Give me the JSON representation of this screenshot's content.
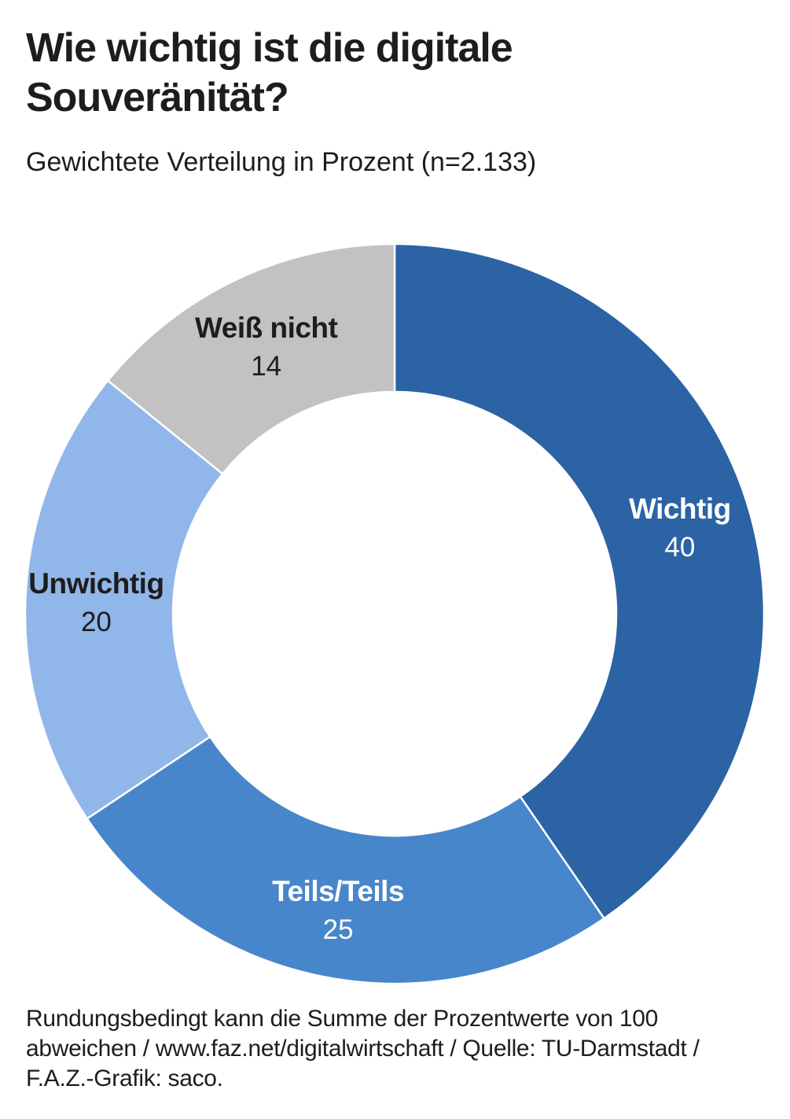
{
  "title": "Wie wichtig ist die digitale Souveränität?",
  "subtitle": "Gewichtete Verteilung in Prozent (n=2.133)",
  "footnote": "Rundungsbedingt kann die Summe der Prozentwerte von 100 abweichen / www.faz.net/digitalwirtschaft / Quelle: TU-Darmstadt / F.A.Z.-Grafik: saco.",
  "colors": {
    "text": "#1d1d1b",
    "background": "#ffffff",
    "divider": "#ffffff"
  },
  "chart_data": {
    "type": "pie",
    "subtype": "donut",
    "title": "Wie wichtig ist die digitale Souveränität?",
    "subtitle": "Gewichtete Verteilung in Prozent (n=2.133)",
    "unit": "Prozent",
    "sample_size": "n=2.133",
    "categories": [
      "Wichtig",
      "Teils/Teils",
      "Unwichtig",
      "Weiß nicht"
    ],
    "values": [
      40,
      25,
      20,
      14
    ],
    "segment_colors": [
      "#2b63a5",
      "#4886cb",
      "#91b6e9",
      "#c2c2c2"
    ],
    "label_colors": [
      "#ffffff",
      "#ffffff",
      "#1d1d1b",
      "#1d1d1b"
    ],
    "start_angle_deg": 0,
    "direction": "clockwise",
    "inner_radius_ratio": 0.6,
    "legend_position": "labels-inside-slices"
  }
}
